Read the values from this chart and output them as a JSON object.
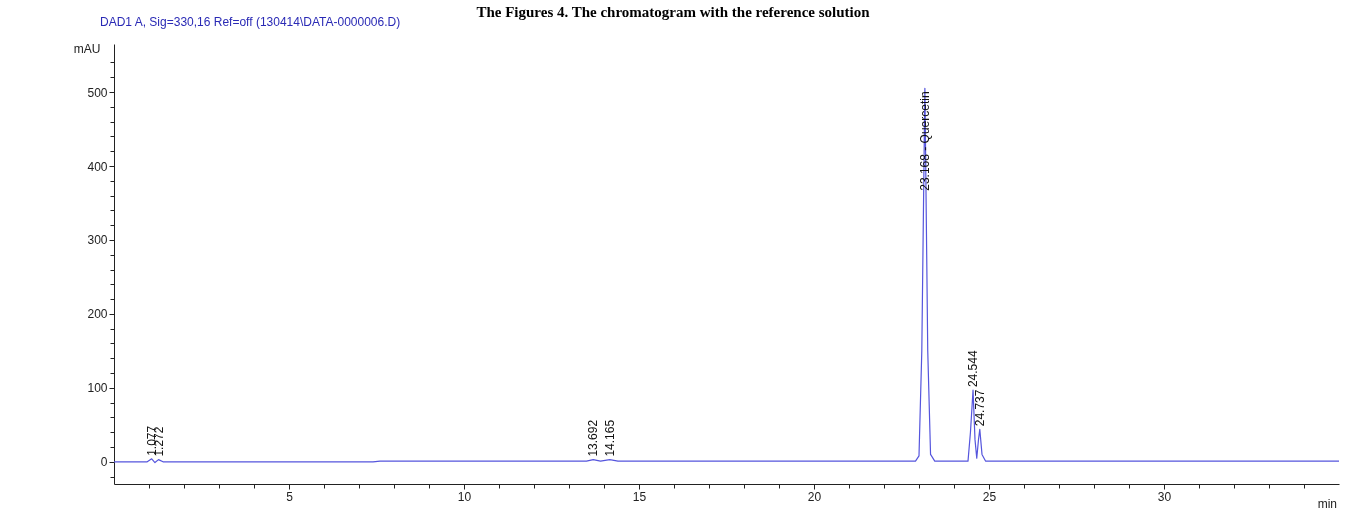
{
  "chart_data": {
    "type": "line",
    "title": "The Figures 4. The chromatogram with the reference solution",
    "subtitle": "DAD1 A, Sig=330,16 Ref=off (130414\\DATA-0000006.D)",
    "xlabel": "min",
    "ylabel": "mAU",
    "x": [
      0,
      0.95,
      1.077,
      1.17,
      1.272,
      1.4,
      7.4,
      7.6,
      13.5,
      13.692,
      13.9,
      14.165,
      14.4,
      19,
      22.9,
      23.0,
      23.08,
      23.168,
      23.25,
      23.33,
      23.45,
      24.4,
      24.47,
      24.544,
      24.6,
      24.65,
      24.7,
      24.737,
      24.8,
      24.9,
      35
    ],
    "series": [
      {
        "color": "#5555dd",
        "values": [
          0,
          0,
          4,
          -1,
          3,
          0,
          0,
          1,
          1,
          3,
          1,
          3,
          1,
          1,
          1,
          8,
          150,
          505,
          150,
          10,
          1,
          1,
          40,
          97,
          30,
          5,
          30,
          44,
          10,
          1,
          1
        ]
      }
    ],
    "xlim": [
      0,
      35
    ],
    "ylim": [
      -30,
      565
    ],
    "xticks": [
      {
        "value": 1,
        "label": null
      },
      {
        "value": 2,
        "label": null
      },
      {
        "value": 3,
        "label": null
      },
      {
        "value": 4,
        "label": null
      },
      5,
      {
        "value": 6,
        "label": null
      },
      {
        "value": 7,
        "label": null
      },
      {
        "value": 8,
        "label": null
      },
      {
        "value": 9,
        "label": null
      },
      10,
      {
        "value": 11,
        "label": null
      },
      {
        "value": 12,
        "label": null
      },
      {
        "value": 13,
        "label": null
      },
      {
        "value": 14,
        "label": null
      },
      15,
      {
        "value": 16,
        "label": null
      },
      {
        "value": 17,
        "label": null
      },
      {
        "value": 18,
        "label": null
      },
      {
        "value": 19,
        "label": null
      },
      20,
      {
        "value": 21,
        "label": null
      },
      {
        "value": 22,
        "label": null
      },
      {
        "value": 23,
        "label": null
      },
      {
        "value": 24,
        "label": null
      },
      25,
      {
        "value": 26,
        "label": null
      },
      {
        "value": 27,
        "label": null
      },
      {
        "value": 28,
        "label": null
      },
      {
        "value": 29,
        "label": null
      },
      30,
      {
        "value": 31,
        "label": null
      },
      {
        "value": 32,
        "label": null
      },
      {
        "value": 33,
        "label": null
      },
      {
        "value": 34,
        "label": null
      }
    ],
    "yticks": [
      {
        "value": -20,
        "label": null
      },
      0,
      {
        "value": 20,
        "label": null
      },
      {
        "value": 40,
        "label": null
      },
      {
        "value": 60,
        "label": null
      },
      {
        "value": 80,
        "label": null
      },
      100,
      {
        "value": 120,
        "label": null
      },
      {
        "value": 140,
        "label": null
      },
      {
        "value": 160,
        "label": null
      },
      {
        "value": 180,
        "label": null
      },
      200,
      {
        "value": 220,
        "label": null
      },
      {
        "value": 240,
        "label": null
      },
      {
        "value": 260,
        "label": null
      },
      {
        "value": 280,
        "label": null
      },
      300,
      {
        "value": 320,
        "label": null
      },
      {
        "value": 340,
        "label": null
      },
      {
        "value": 360,
        "label": null
      },
      {
        "value": 380,
        "label": null
      },
      400,
      {
        "value": 420,
        "label": null
      },
      {
        "value": 440,
        "label": null
      },
      {
        "value": 460,
        "label": null
      },
      {
        "value": 480,
        "label": null
      },
      500,
      {
        "value": 520,
        "label": null
      },
      {
        "value": 540,
        "label": null
      }
    ],
    "annotations": [
      {
        "text": "1.077",
        "x": 1.077,
        "y": 4
      },
      {
        "text": "1.272",
        "x": 1.272,
        "y": 3
      },
      {
        "text": "13.692",
        "x": 13.692,
        "y": 3
      },
      {
        "text": "14.165",
        "x": 14.165,
        "y": 3
      },
      {
        "text": "23.168 - Quercetin",
        "x": 23.168,
        "y": 505
      },
      {
        "text": "24.544",
        "x": 24.544,
        "y": 97
      },
      {
        "text": "24.737",
        "x": 24.737,
        "y": 44
      }
    ],
    "grid": false,
    "marker": "none",
    "line_style": "solid"
  }
}
